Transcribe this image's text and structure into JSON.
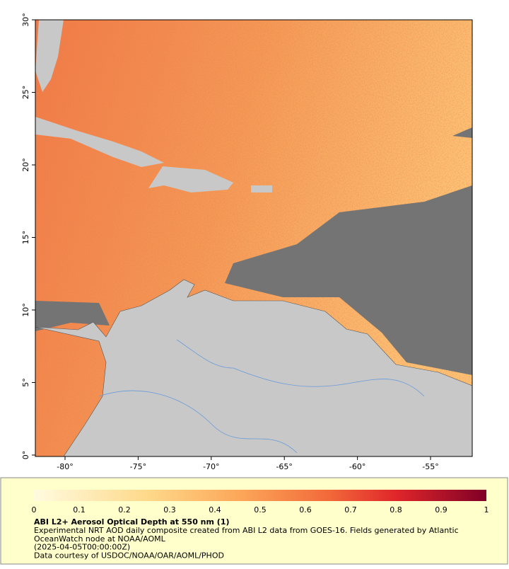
{
  "map": {
    "x_ticks": [
      "-80°",
      "-75°",
      "-70°",
      "-65°",
      "-60°",
      "-55°"
    ],
    "y_ticks": [
      "30°",
      "25°",
      "20°",
      "15°",
      "10°",
      "5°",
      "0°"
    ]
  },
  "colorbar": {
    "ticks": [
      "0",
      "0.1",
      "0.2",
      "0.3",
      "0.4",
      "0.5",
      "0.6",
      "0.7",
      "0.8",
      "0.9",
      "1"
    ]
  },
  "caption": {
    "title": "ABI L2+ Aerosol Optical Depth at 550 nm (1)",
    "lines": [
      "Experimental NRT AOD daily composite created from ABI L2 data from GOES-16. Fields generated by Atlantic",
      "OceanWatch node at NOAA/AOML",
      "(2025-04-05T00:00:00Z)",
      "Data courtesy of USDOC/NOAA/OAR/AOML/PHOD"
    ]
  }
}
